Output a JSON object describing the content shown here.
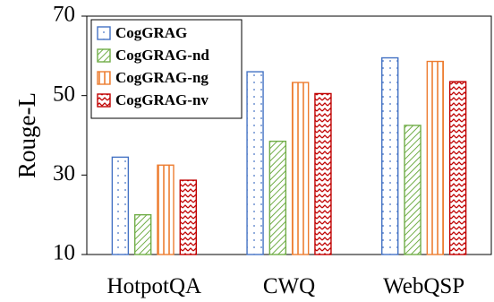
{
  "chart_data": {
    "type": "bar",
    "title": "",
    "xlabel": "",
    "ylabel": "Rouge-L",
    "ylim": [
      10,
      70
    ],
    "yticks": [
      10,
      30,
      50,
      70
    ],
    "categories": [
      "HotpotQA",
      "CWQ",
      "WebQSP"
    ],
    "grid": false,
    "legend_position": "top-left",
    "series": [
      {
        "name": "CogGRAG",
        "values": [
          34.5,
          56.0,
          59.5
        ],
        "color": "#4472C4",
        "pattern": "dots"
      },
      {
        "name": "CogGRAG-nd",
        "values": [
          20.0,
          38.5,
          42.5
        ],
        "color": "#70AD47",
        "pattern": "diagonal"
      },
      {
        "name": "CogGRAG-ng",
        "values": [
          32.5,
          53.3,
          58.6
        ],
        "color": "#ED7D31",
        "pattern": "vertical"
      },
      {
        "name": "CogGRAG-nv",
        "values": [
          28.7,
          50.5,
          53.5
        ],
        "color": "#C00000",
        "pattern": "zigzag"
      }
    ]
  }
}
